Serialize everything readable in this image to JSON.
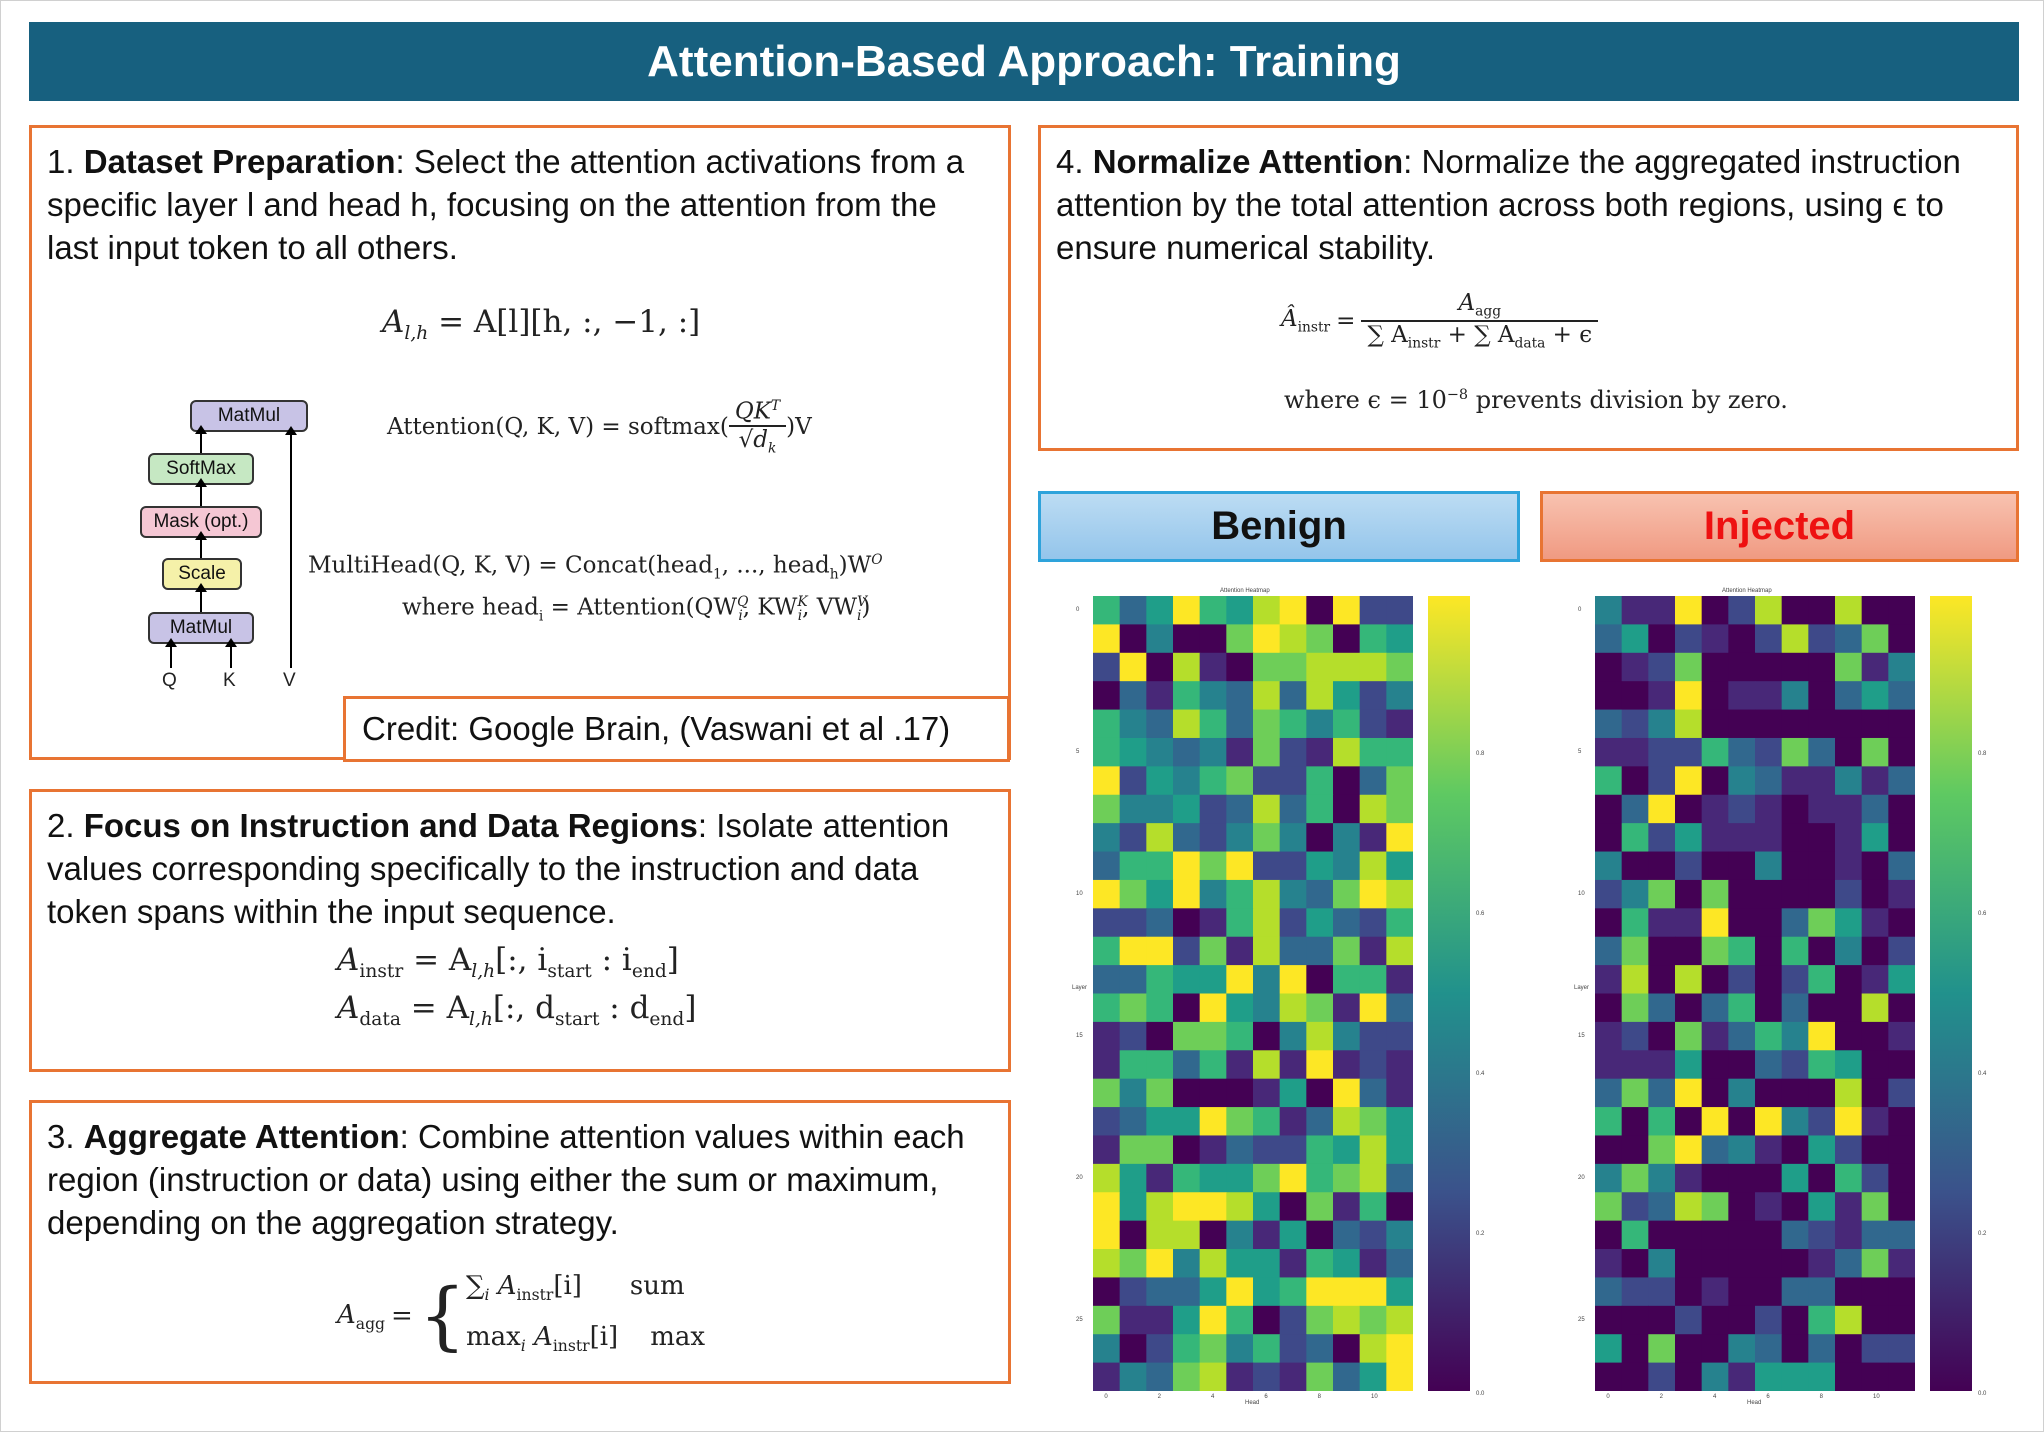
{
  "title": "Attention-Based Approach: Training",
  "panel1": {
    "num": "1. ",
    "bold": "Dataset Preparation",
    "text": ": Select the attention activations from a specific layer l and head h, focusing on the attention from the last input token to all others.",
    "eq_lhs": "A",
    "eq_lhs_sub": "l,h",
    "eq_rhs": " = A[l][h, :, −1, :]",
    "eq_attention": "Attention(Q, K, V) = softmax(",
    "eq_attention_num": "QK",
    "eq_attention_sup": "T",
    "eq_attention_den": "√d",
    "eq_attention_den_sub": "k",
    "eq_attention_end": ")V",
    "eq_multihead": "MultiHead(Q, K, V) = Concat(head",
    "eq_multihead_2": ", ..., head",
    "eq_multihead_3": ")W",
    "eq_multihead_sub1": "1",
    "eq_multihead_subh": "h",
    "eq_multihead_supO": "O",
    "eq_where": "where head",
    "eq_where_sub": "i",
    "eq_where_rhs": " = Attention(QW",
    "eq_where_q": "Q",
    "eq_where_k": "K",
    "eq_where_v": "V",
    "eq_where_sub_i": "i",
    "eq_where_mid1": ", KW",
    "eq_where_mid2": ", VW",
    "eq_where_end": ")",
    "diagram": {
      "blocks": [
        "MatMul",
        "SoftMax",
        "Mask (opt.)",
        "Scale",
        "MatMul"
      ],
      "inputs": [
        "Q",
        "K",
        "V"
      ],
      "colors": {
        "matmul": "#c8c3e6",
        "softmax": "#c6e8c3",
        "mask": "#f5c7d4",
        "scale": "#f5f1a9"
      }
    },
    "credit": "Credit: Google Brain, (Vaswani et al .17)"
  },
  "panel2": {
    "num": "2. ",
    "bold": "Focus on Instruction and Data Regions",
    "text": ": Isolate attention values corresponding specifically to the instruction and data token spans within the input sequence.",
    "eq1_lhs": "A",
    "eq1_lhs_sub": "instr",
    "eq1_rhs": " = A",
    "eq1_rhs_sub": "l,h",
    "eq1_idx": "[:, i",
    "eq1_start": "start",
    "eq1_colon": " : i",
    "eq1_end": "end",
    "eq1_close": "]",
    "eq2_lhs": "A",
    "eq2_lhs_sub": "data",
    "eq2_rhs": " = A",
    "eq2_rhs_sub": "l,h",
    "eq2_idx": "[:, d",
    "eq2_start": "start",
    "eq2_colon": " : d",
    "eq2_end": "end",
    "eq2_close": "]"
  },
  "panel3": {
    "num": "3. ",
    "bold": "Aggregate Attention",
    "text": ": Combine attention values within each region (instruction or data) using either the sum or maximum, depending on the aggregation strategy.",
    "eq_lhs": "A",
    "eq_lhs_sub": "agg",
    "eq_eq": " = ",
    "case1_expr": "∑",
    "case1_i": "i",
    "case1_a": " A",
    "case1_sub": "instr",
    "case1_idx": "[i]",
    "case1_label": "sum",
    "case2_expr": "max",
    "case2_i": "i",
    "case2_a": " A",
    "case2_sub": "instr",
    "case2_idx": "[i]",
    "case2_label": "max"
  },
  "panel4": {
    "num": "4. ",
    "bold": "Normalize Attention",
    "text": ": Normalize the aggregated instruction attention by the total attention across both regions, using ϵ to ensure numerical stability.",
    "eq_lhs": "Â",
    "eq_lhs_sub": "instr",
    "eq_eq": " = ",
    "num_a": "A",
    "num_sub": "agg",
    "den_1": "∑ A",
    "den_1_sub": "instr",
    "den_2": " + ∑ A",
    "den_2_sub": "data",
    "den_3": " + ϵ",
    "where": "where ϵ = 10",
    "where_sup": "−8",
    "where_end": " prevents division by zero."
  },
  "labels": {
    "benign": "Benign",
    "injected": "Injected"
  },
  "heatmaps": {
    "title": "Attention Heatmap",
    "xlabel": "Head",
    "ylabel": "Layer",
    "rows": 28,
    "cols": 12,
    "xticks": [
      "0",
      "2",
      "4",
      "6",
      "8",
      "10"
    ],
    "yticks": [
      "0",
      "5",
      "10",
      "15",
      "20",
      "25"
    ],
    "benign_cbar_ticks": [
      "0.8",
      "0.6",
      "0.4",
      "0.2",
      "0.0"
    ],
    "injected_cbar_ticks": [
      "0.8",
      "0.6",
      "0.4",
      "0.2",
      "0.0"
    ]
  }
}
